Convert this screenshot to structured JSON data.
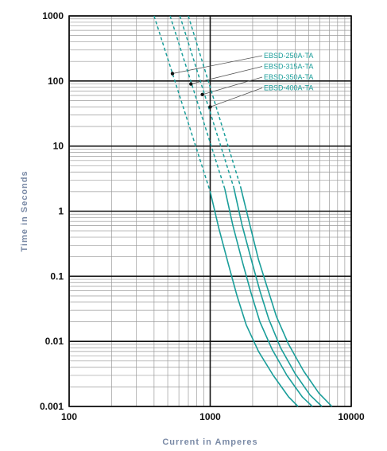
{
  "chart_data": {
    "type": "line",
    "title": "",
    "xlabel": "Current in Amperes",
    "ylabel": "Time in Seconds",
    "x_scale": "log",
    "y_scale": "log",
    "xlim": [
      100,
      10000
    ],
    "ylim": [
      0.001,
      1000
    ],
    "x_tick_labels": [
      "100",
      "1000",
      "10000"
    ],
    "y_tick_labels": [
      "1000",
      "100",
      "10",
      "1",
      "0.1",
      "0.01",
      "0.001"
    ],
    "grid": true,
    "series_color": "#1a9e9a",
    "series": [
      {
        "name": "EBSD-250A-TA",
        "dashed": [
          [
            400,
            1000
          ],
          [
            1000,
            2.0
          ]
        ],
        "solid": [
          [
            1000,
            2.0
          ],
          [
            1150,
            0.55
          ],
          [
            1350,
            0.15
          ],
          [
            1550,
            0.05
          ],
          [
            1800,
            0.018
          ],
          [
            2200,
            0.007
          ],
          [
            2800,
            0.003
          ],
          [
            3600,
            0.0014
          ],
          [
            4200,
            0.001
          ]
        ],
        "marker": [
          540,
          130
        ]
      },
      {
        "name": "EBSD-315A-TA",
        "dashed": [
          [
            520,
            1000
          ],
          [
            1270,
            2.2
          ]
        ],
        "solid": [
          [
            1270,
            2.2
          ],
          [
            1450,
            0.6
          ],
          [
            1700,
            0.16
          ],
          [
            1950,
            0.055
          ],
          [
            2250,
            0.02
          ],
          [
            2750,
            0.0075
          ],
          [
            3500,
            0.003
          ],
          [
            4500,
            0.0014
          ],
          [
            5300,
            0.001
          ]
        ],
        "marker": [
          730,
          90
        ]
      },
      {
        "name": "EBSD-350A-TA",
        "dashed": [
          [
            610,
            1000
          ],
          [
            1470,
            2.3
          ]
        ],
        "solid": [
          [
            1470,
            2.3
          ],
          [
            1680,
            0.62
          ],
          [
            1970,
            0.17
          ],
          [
            2250,
            0.06
          ],
          [
            2600,
            0.022
          ],
          [
            3150,
            0.008
          ],
          [
            4000,
            0.0032
          ],
          [
            5100,
            0.0015
          ],
          [
            6200,
            0.001
          ]
        ],
        "marker": [
          880,
          62
        ]
      },
      {
        "name": "EBSD-400A-TA",
        "dashed": [
          [
            700,
            1000
          ],
          [
            1640,
            2.4
          ]
        ],
        "solid": [
          [
            1640,
            2.4
          ],
          [
            1900,
            0.65
          ],
          [
            2200,
            0.18
          ],
          [
            2550,
            0.065
          ],
          [
            2950,
            0.024
          ],
          [
            3600,
            0.009
          ],
          [
            4600,
            0.0035
          ],
          [
            5900,
            0.0016
          ],
          [
            7300,
            0.001
          ]
        ],
        "marker": [
          1000,
          40
        ]
      }
    ]
  }
}
